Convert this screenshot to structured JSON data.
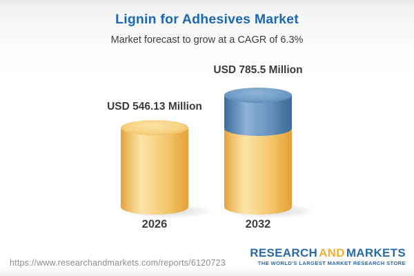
{
  "header": {
    "title": "Lignin for Adhesives Market",
    "subtitle": "Market forecast to grow at a CAGR of 6.3%"
  },
  "chart_data": {
    "type": "bar",
    "subtype": "3d-cylinder-infographic",
    "title": "Lignin for Adhesives Market",
    "subtitle": "Market forecast to grow at a CAGR of 6.3%",
    "unit": "USD Million",
    "cagr_percent": 6.3,
    "categories": [
      "2026",
      "2032"
    ],
    "values": [
      546.13,
      785.5
    ],
    "value_labels": [
      "USD 546.13 Million",
      "USD 785.5 Million"
    ],
    "series": [
      {
        "name": "base value (yellow)",
        "values": [
          546.13,
          546.13
        ]
      },
      {
        "name": "forecast growth (blue)",
        "values": [
          0,
          239.37
        ]
      }
    ],
    "legend": "none",
    "grid": false,
    "axes": "none",
    "bar_base_color": "#f5c96d",
    "bar_growth_color": "#5d8cb8"
  },
  "footer": {
    "url": "https://www.researchandmarkets.com/reports/6120723",
    "logo": {
      "word1": "RESEARCH",
      "word2": "AND",
      "word3": "MARKETS",
      "tagline": "THE WORLD'S LARGEST MARKET RESEARCH STORE"
    }
  },
  "colors": {
    "title_blue": "#1d68ac",
    "text_dark": "#3a3a3a",
    "url_gray": "#8d8d8d",
    "logo_blue": "#2a6aa3",
    "logo_gold": "#f0b033",
    "cylinder_yellow": "#f5c96d",
    "cylinder_blue": "#5d8cb8"
  }
}
